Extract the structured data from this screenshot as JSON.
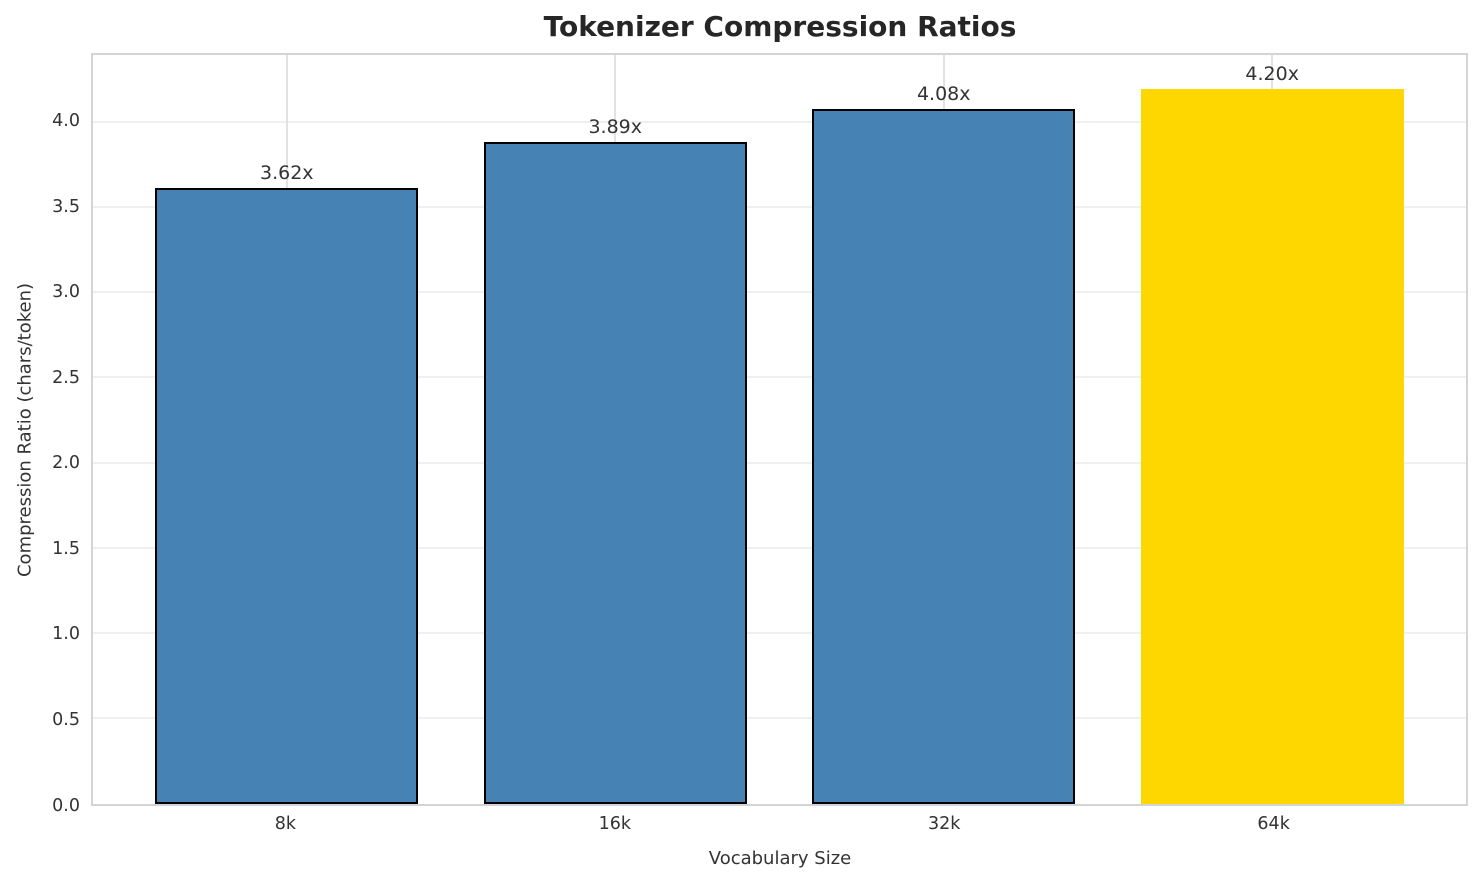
{
  "chart_data": {
    "type": "bar",
    "title": "Tokenizer Compression Ratios",
    "xlabel": "Vocabulary Size",
    "ylabel": "Compression Ratio (chars/token)",
    "categories": [
      "8k",
      "16k",
      "32k",
      "64k"
    ],
    "values": [
      3.62,
      3.89,
      4.08,
      4.2
    ],
    "value_labels": [
      "3.62x",
      "3.89x",
      "4.08x",
      "4.20x"
    ],
    "ylim": [
      0,
      4.4
    ],
    "yticks": [
      0.0,
      0.5,
      1.0,
      1.5,
      2.0,
      2.5,
      3.0,
      3.5,
      4.0
    ],
    "ytick_labels": [
      "0.0",
      "0.5",
      "1.0",
      "1.5",
      "2.0",
      "2.5",
      "3.0",
      "3.5",
      "4.0"
    ],
    "grid": true,
    "legend_position": "none",
    "colors": {
      "bar_default": "#4682B4",
      "bar_highlight": "#FFD700",
      "bar_edge": "#000000",
      "grid_line": "#efefef",
      "spine": "#d4d4d4",
      "title_text": "#262626",
      "axis_text": "#333333"
    },
    "bar_colors": [
      "#4682B4",
      "#4682B4",
      "#4682B4",
      "#FFD700"
    ],
    "bar_edge_colors": [
      "#000000",
      "#000000",
      "#000000",
      "none"
    ]
  }
}
